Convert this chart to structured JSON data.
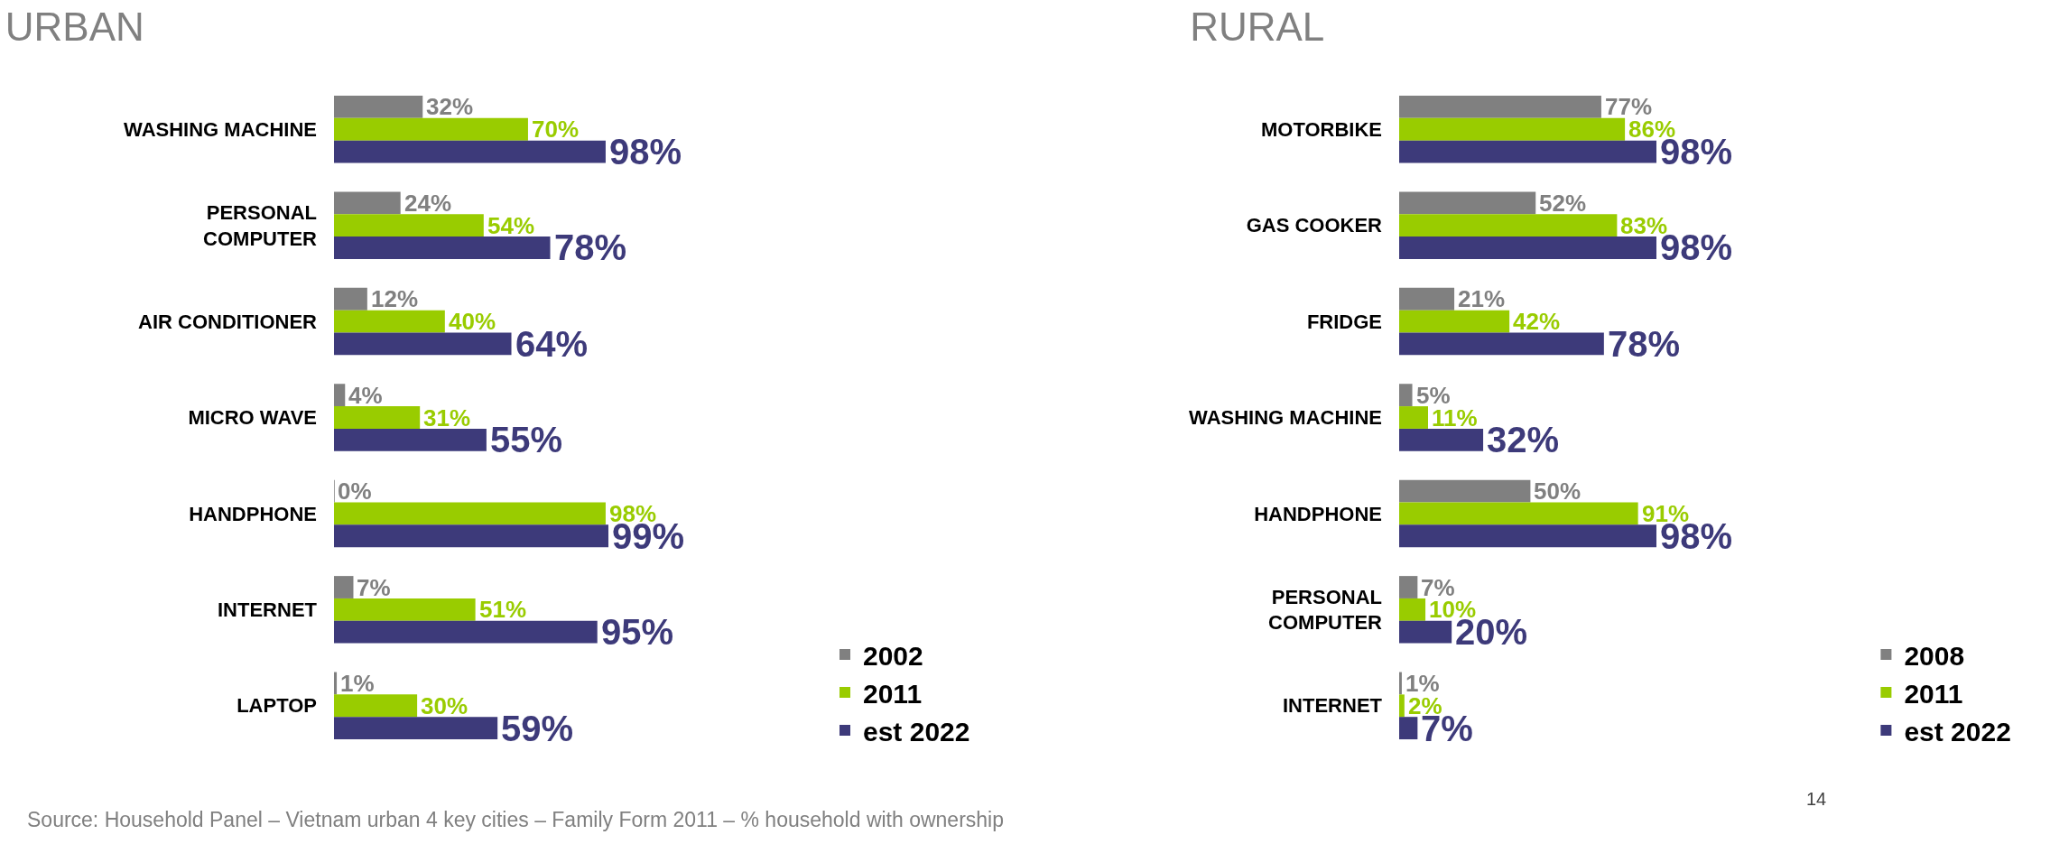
{
  "chart_data": [
    {
      "type": "bar",
      "orientation": "horizontal",
      "title": "URBAN",
      "categories": [
        "WASHING MACHINE",
        "PERSONAL COMPUTER",
        "AIR CONDITIONER",
        "MICRO WAVE",
        "HANDPHONE",
        "INTERNET",
        "LAPTOP"
      ],
      "series": [
        {
          "name": "2002",
          "color": "#808080",
          "values": [
            32,
            24,
            12,
            4,
            0,
            7,
            1
          ],
          "value_labels": [
            "32%",
            "24%",
            "12%",
            "4%",
            "0%",
            "7%",
            "1%"
          ]
        },
        {
          "name": "2011",
          "color": "#99cc00",
          "values": [
            70,
            54,
            40,
            31,
            98,
            51,
            30
          ],
          "value_labels": [
            "70%",
            "54%",
            "40%",
            "31%",
            "98%",
            "51%",
            "30%"
          ]
        },
        {
          "name": "est 2022",
          "color": "#3d3a7a",
          "values": [
            98,
            78,
            64,
            55,
            99,
            95,
            59
          ],
          "value_labels": [
            "98%",
            "78%",
            "64%",
            "55%",
            "99%",
            "95%",
            "59%"
          ]
        }
      ],
      "tick_labels": "y",
      "legend": "bottom right",
      "annotations": [
        "Source: Household Panel – Vietnam urban 4 key cities – Family Form 2011 – % household with ownership"
      ]
    },
    {
      "type": "bar",
      "orientation": "horizontal",
      "title": "RURAL",
      "categories": [
        "MOTORBIKE",
        "GAS COOKER",
        "FRIDGE",
        "WASHING MACHINE",
        "HANDPHONE",
        "PERSONAL COMPUTER",
        "INTERNET"
      ],
      "series": [
        {
          "name": "2008",
          "color": "#808080",
          "values": [
            77,
            52,
            21,
            5,
            50,
            7,
            1
          ],
          "value_labels": [
            "77%",
            "52%",
            "21%",
            "5%",
            "50%",
            "7%",
            "1%"
          ]
        },
        {
          "name": "2011",
          "color": "#99cc00",
          "values": [
            86,
            83,
            42,
            11,
            91,
            10,
            2
          ],
          "value_labels": [
            "86%",
            "83%",
            "42%",
            "11%",
            "91%",
            "10%",
            "2%"
          ]
        },
        {
          "name": "est 2022",
          "color": "#3d3a7a",
          "values": [
            98,
            98,
            78,
            32,
            98,
            20,
            7
          ],
          "value_labels": [
            "98%",
            "98%",
            "78%",
            "32%",
            "98%",
            "20%",
            "7%"
          ]
        }
      ],
      "tick_labels": "y",
      "legend": "bottom right",
      "annotations": [
        "14"
      ]
    }
  ]
}
